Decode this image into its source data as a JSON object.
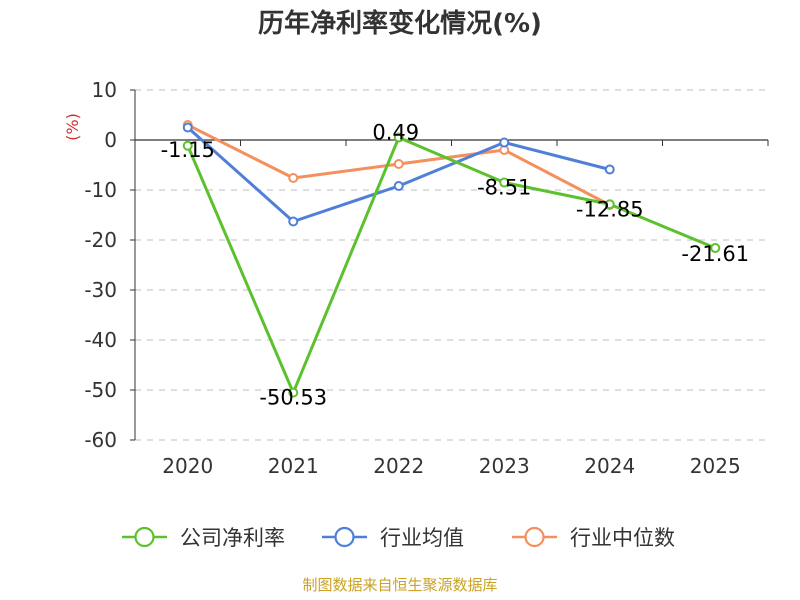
{
  "chart_data": {
    "type": "line",
    "title": "历年净利率变化情况(%)",
    "ylabel": "(%)",
    "xlabel": "",
    "categories": [
      "2020",
      "2021",
      "2022",
      "2023",
      "2024",
      "2025"
    ],
    "ylim": [
      -60,
      10
    ],
    "yticks": [
      10,
      0,
      -10,
      -20,
      -30,
      -40,
      -50,
      -60
    ],
    "grid": true,
    "legend_position": "bottom",
    "series": [
      {
        "name": "公司净利率",
        "color": "#5cc12f",
        "values": [
          -1.15,
          -50.53,
          0.49,
          -8.51,
          -12.85,
          -21.61
        ],
        "labels": [
          "-1.15",
          "-50.53",
          "0.49",
          "-8.51",
          "-12.85",
          "-21.61"
        ]
      },
      {
        "name": "行业均值",
        "color": "#4f7fd9",
        "values": [
          2.5,
          -16.3,
          -9.2,
          -0.5,
          -5.9,
          null
        ]
      },
      {
        "name": "行业中位数",
        "color": "#f5905c",
        "values": [
          3.0,
          -7.6,
          -4.8,
          -2.0,
          -13.0,
          null
        ]
      }
    ]
  },
  "source_text": "制图数据来自恒生聚源数据库",
  "colors": {
    "axis": "#333333",
    "grid": "#cccccc",
    "unit": "#d32f2f",
    "source": "#c9a227"
  }
}
